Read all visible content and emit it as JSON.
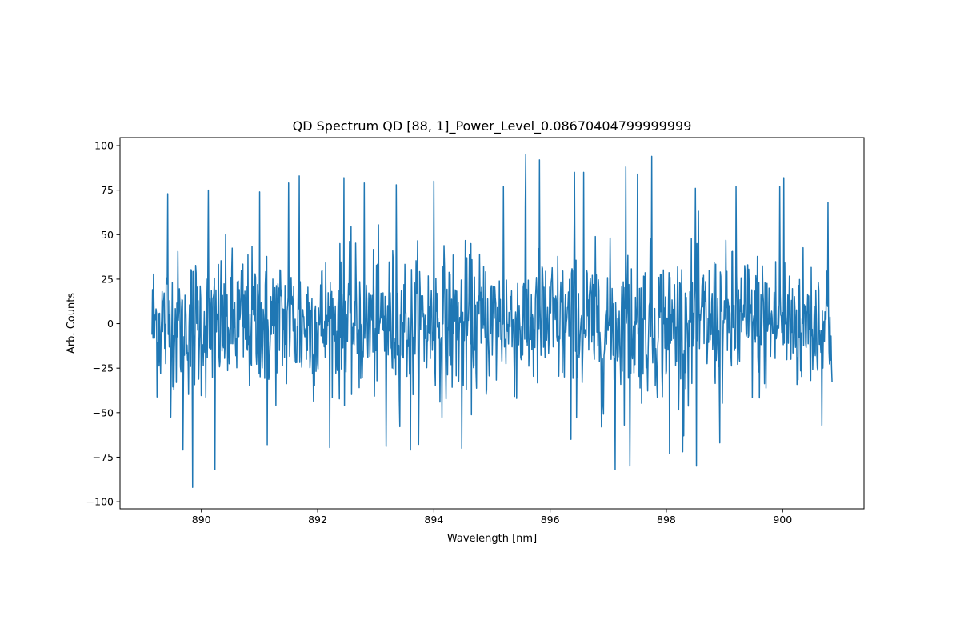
{
  "chart_data": {
    "type": "line",
    "title": "QD Spectrum QD [88, 1]_Power_Level_0.08670404799999999",
    "xlabel": "Wavelength [nm]",
    "ylabel": "Arb. Counts",
    "xlim": [
      888.6,
      901.4
    ],
    "ylim": [
      -104,
      104.5
    ],
    "x_range": [
      889.15,
      900.85
    ],
    "xticks": [
      890,
      892,
      894,
      896,
      898,
      900
    ],
    "yticks": [
      -100,
      -75,
      -50,
      -25,
      0,
      25,
      50,
      75,
      100
    ],
    "series_color": "#1f77b4",
    "series": [
      {
        "name": "spectrum",
        "n_points": 1340,
        "noise_sd": 20,
        "peaks": [
          {
            "x": 889.85,
            "y": -92
          },
          {
            "x": 890.23,
            "y": -82
          },
          {
            "x": 889.68,
            "y": -71
          },
          {
            "x": 891.13,
            "y": -68
          },
          {
            "x": 891.68,
            "y": 83
          },
          {
            "x": 892.45,
            "y": 82
          },
          {
            "x": 893.18,
            "y": -69
          },
          {
            "x": 893.6,
            "y": -71
          },
          {
            "x": 894.48,
            "y": -70
          },
          {
            "x": 895.58,
            "y": 95
          },
          {
            "x": 895.82,
            "y": 92
          },
          {
            "x": 896.36,
            "y": -65
          },
          {
            "x": 896.88,
            "y": -58
          },
          {
            "x": 897.12,
            "y": -82
          },
          {
            "x": 897.3,
            "y": 88
          },
          {
            "x": 897.37,
            "y": -80
          },
          {
            "x": 897.75,
            "y": 94
          },
          {
            "x": 898.05,
            "y": -73
          },
          {
            "x": 898.3,
            "y": -63
          },
          {
            "x": 898.52,
            "y": -80
          },
          {
            "x": 898.92,
            "y": -67
          },
          {
            "x": 900.02,
            "y": 82
          },
          {
            "x": 889.42,
            "y": 73
          },
          {
            "x": 890.12,
            "y": 75
          },
          {
            "x": 891.0,
            "y": 74
          },
          {
            "x": 891.5,
            "y": 79
          },
          {
            "x": 892.8,
            "y": 79
          },
          {
            "x": 893.35,
            "y": 78
          },
          {
            "x": 894.0,
            "y": 80
          },
          {
            "x": 895.2,
            "y": 77
          },
          {
            "x": 896.42,
            "y": 85
          },
          {
            "x": 896.58,
            "y": 85
          },
          {
            "x": 897.5,
            "y": 84
          },
          {
            "x": 898.5,
            "y": 76
          },
          {
            "x": 899.2,
            "y": 77
          },
          {
            "x": 899.95,
            "y": 77
          },
          {
            "x": 900.78,
            "y": 68
          }
        ]
      }
    ]
  }
}
